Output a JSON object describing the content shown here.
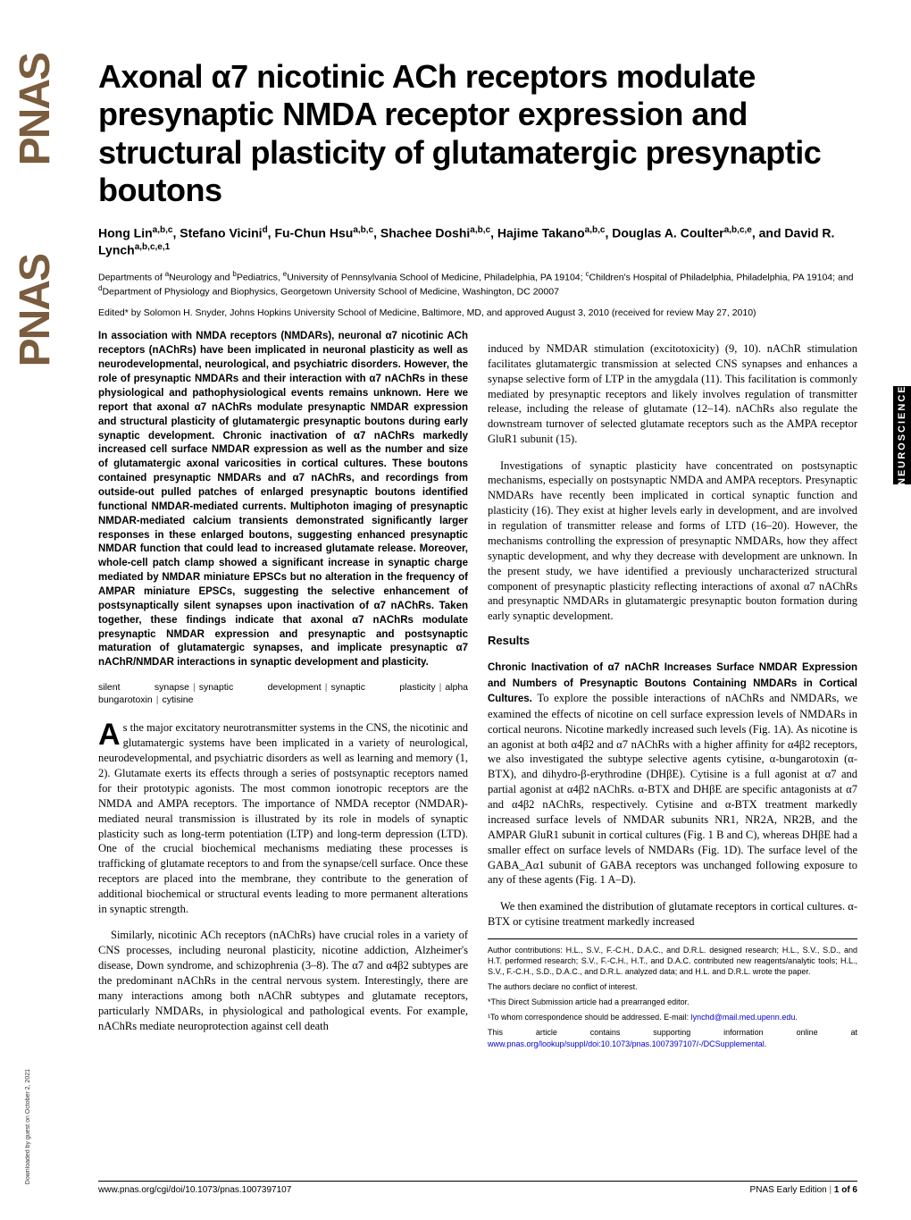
{
  "journal_logo": "PNAS",
  "category_tab": "NEUROSCIENCE",
  "title": "Axonal α7 nicotinic ACh receptors modulate presynaptic NMDA receptor expression and structural plasticity of glutamatergic presynaptic boutons",
  "authors_html": "Hong Lin<sup>a,b,c</sup>, Stefano Vicini<sup>d</sup>, Fu-Chun Hsu<sup>a,b,c</sup>, Shachee Doshi<sup>a,b,c</sup>, Hajime Takano<sup>a,b,c</sup>, Douglas A. Coulter<sup>a,b,c,e</sup>, and David R. Lynch<sup>a,b,c,e,1</sup>",
  "affiliations_html": "Departments of <sup>a</sup>Neurology and <sup>b</sup>Pediatrics, <sup>e</sup>University of Pennsylvania School of Medicine, Philadelphia, PA 19104; <sup>c</sup>Children's Hospital of Philadelphia, Philadelphia, PA 19104; and <sup>d</sup>Department of Physiology and Biophysics, Georgetown University School of Medicine, Washington, DC 20007",
  "edited_line": "Edited* by Solomon H. Snyder, Johns Hopkins University School of Medicine, Baltimore, MD, and approved August 3, 2010 (received for review May 27, 2010)",
  "abstract": "In association with NMDA receptors (NMDARs), neuronal α7 nicotinic ACh receptors (nAChRs) have been implicated in neuronal plasticity as well as neurodevelopmental, neurological, and psychiatric disorders. However, the role of presynaptic NMDARs and their interaction with α7 nAChRs in these physiological and pathophysiological events remains unknown. Here we report that axonal α7 nAChRs modulate presynaptic NMDAR expression and structural plasticity of glutamatergic presynaptic boutons during early synaptic development. Chronic inactivation of α7 nAChRs markedly increased cell surface NMDAR expression as well as the number and size of glutamatergic axonal varicosities in cortical cultures. These boutons contained presynaptic NMDARs and α7 nAChRs, and recordings from outside-out pulled patches of enlarged presynaptic boutons identified functional NMDAR-mediated currents. Multiphoton imaging of presynaptic NMDAR-mediated calcium transients demonstrated significantly larger responses in these enlarged boutons, suggesting enhanced presynaptic NMDAR function that could lead to increased glutamate release. Moreover, whole-cell patch clamp showed a significant increase in synaptic charge mediated by NMDAR miniature EPSCs but no alteration in the frequency of AMPAR miniature EPSCs, suggesting the selective enhancement of postsynaptically silent synapses upon inactivation of α7 nAChRs. Taken together, these findings indicate that axonal α7 nAChRs modulate presynaptic NMDAR expression and presynaptic and postsynaptic maturation of glutamatergic synapses, and implicate presynaptic α7 nAChR/NMDAR interactions in synaptic development and plasticity.",
  "keywords": [
    "silent synapse",
    "synaptic development",
    "synaptic plasticity",
    "alpha bungarotoxin",
    "cytisine"
  ],
  "intro_para1_first": "A",
  "intro_para1_rest": "s the major excitatory neurotransmitter systems in the CNS, the nicotinic and glutamatergic systems have been implicated in a variety of neurological, neurodevelopmental, and psychiatric disorders as well as learning and memory (1, 2). Glutamate exerts its effects through a series of postsynaptic receptors named for their prototypic agonists. The most common ionotropic receptors are the NMDA and AMPA receptors. The importance of NMDA receptor (NMDAR)-mediated neural transmission is illustrated by its role in models of synaptic plasticity such as long-term potentiation (LTP) and long-term depression (LTD). One of the crucial biochemical mechanisms mediating these processes is trafficking of glutamate receptors to and from the synapse/cell surface. Once these receptors are placed into the membrane, they contribute to the generation of additional biochemical or structural events leading to more permanent alterations in synaptic strength.",
  "intro_para2": "Similarly, nicotinic ACh receptors (nAChRs) have crucial roles in a variety of CNS processes, including neuronal plasticity, nicotine addiction, Alzheimer's disease, Down syndrome, and schizophrenia (3–8). The α7 and α4β2 subtypes are the predominant nAChRs in the central nervous system. Interestingly, there are many interactions among both nAChR subtypes and glutamate receptors, particularly NMDARs, in physiological and pathological events. For example, nAChRs mediate neuroprotection against cell death",
  "col2_para1": "induced by NMDAR stimulation (excitotoxicity) (9, 10). nAChR stimulation facilitates glutamatergic transmission at selected CNS synapses and enhances a synapse selective form of LTP in the amygdala (11). This facilitation is commonly mediated by presynaptic receptors and likely involves regulation of transmitter release, including the release of glutamate (12–14). nAChRs also regulate the downstream turnover of selected glutamate receptors such as the AMPA receptor GluR1 subunit (15).",
  "col2_para2": "Investigations of synaptic plasticity have concentrated on postsynaptic mechanisms, especially on postsynaptic NMDA and AMPA receptors. Presynaptic NMDARs have recently been implicated in cortical synaptic function and plasticity (16). They exist at higher levels early in development, and are involved in regulation of transmitter release and forms of LTD (16–20). However, the mechanisms controlling the expression of presynaptic NMDARs, how they affect synaptic development, and why they decrease with development are unknown. In the present study, we have identified a previously uncharacterized structural component of presynaptic plasticity reflecting interactions of axonal α7 nAChRs and presynaptic NMDARs in glutamatergic presynaptic bouton formation during early synaptic development.",
  "results_heading": "Results",
  "results_subsection_title": "Chronic Inactivation of α7 nAChR Increases Surface NMDAR Expression and Numbers of Presynaptic Boutons Containing NMDARs in Cortical Cultures.",
  "results_para1_body": " To explore the possible interactions of nAChRs and NMDARs, we examined the effects of nicotine on cell surface expression levels of NMDARs in cortical neurons. Nicotine markedly increased such levels (Fig. 1A). As nicotine is an agonist at both α4β2 and α7 nAChRs with a higher affinity for α4β2 receptors, we also investigated the subtype selective agents cytisine, α-bungarotoxin (α-BTX), and dihydro-β-erythrodine (DHβE). Cytisine is a full agonist at α7 and partial agonist at α4β2 nAChRs. α-BTX and DHβE are specific antagonists at α7 and α4β2 nAChRs, respectively. Cytisine and α-BTX treatment markedly increased surface levels of NMDAR subunits NR1, NR2A, NR2B, and the AMPAR GluR1 subunit in cortical cultures (Fig. 1 B and C), whereas DHβE had a smaller effect on surface levels of NMDARs (Fig. 1D). The surface level of the GABA_Aα1 subunit of GABA receptors was unchanged following exposure to any of these agents (Fig. 1 A–D).",
  "results_para2": "We then examined the distribution of glutamate receptors in cortical cultures. α-BTX or cytisine treatment markedly increased",
  "footnotes": {
    "contributions": "Author contributions: H.L., S.V., F.-C.H., D.A.C., and D.R.L. designed research; H.L., S.V., S.D., and H.T. performed research; S.V., F.-C.H., H.T., and D.A.C. contributed new reagents/analytic tools; H.L., S.V., F.-C.H., S.D., D.A.C., and D.R.L. analyzed data; and H.L. and D.R.L. wrote the paper.",
    "conflict": "The authors declare no conflict of interest.",
    "submission": "*This Direct Submission article had a prearranged editor.",
    "correspondence_label": "¹To whom correspondence should be addressed. E-mail: ",
    "correspondence_email": "lynchd@mail.med.upenn.edu",
    "supplemental_prefix": "This article contains supporting information online at ",
    "supplemental_link": "www.pnas.org/lookup/suppl/doi:10.1073/pnas.1007397107/-/DCSupplemental"
  },
  "footer": {
    "doi": "www.pnas.org/cgi/doi/10.1073/pnas.1007397107",
    "right_prefix": "PNAS Early Edition",
    "page": "1 of 6"
  },
  "download_note": "Downloaded by guest on October 2, 2021"
}
